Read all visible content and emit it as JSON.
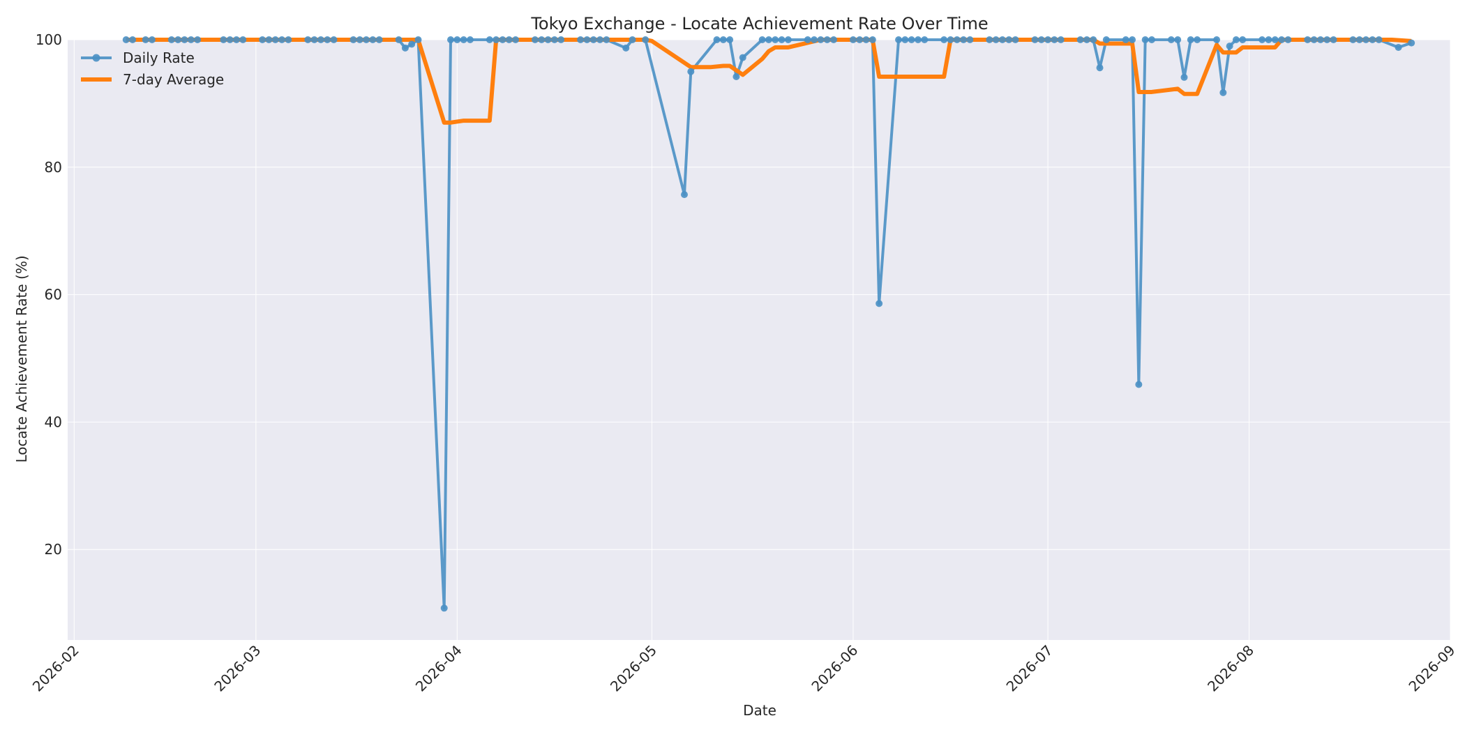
{
  "chart_data": {
    "type": "line",
    "title": "Tokyo Exchange - Locate Achievement Rate Over Time",
    "xlabel": "Date",
    "ylabel": "Locate Achievement Rate (%)",
    "x_tick_labels": [
      "2026-02",
      "2026-03",
      "2026-04",
      "2026-05",
      "2026-06",
      "2026-07",
      "2026-08",
      "2026-09"
    ],
    "x_tick_dates": [
      "2026-02-01",
      "2026-03-01",
      "2026-04-01",
      "2026-05-01",
      "2026-06-01",
      "2026-07-01",
      "2026-08-01",
      "2026-09-01"
    ],
    "xlim": [
      "2026-01-31",
      "2026-09-01"
    ],
    "y_ticks": [
      20,
      40,
      60,
      80,
      100
    ],
    "ylim": [
      5.8,
      100
    ],
    "grid": true,
    "legend_position": "top-left",
    "series": [
      {
        "name": "Daily Rate",
        "color": "#4a90c4",
        "marker": "circle",
        "points": [
          [
            "2026-02-09",
            100
          ],
          [
            "2026-02-10",
            100
          ],
          [
            "2026-02-12",
            100
          ],
          [
            "2026-02-13",
            100
          ],
          [
            "2026-02-16",
            100
          ],
          [
            "2026-02-17",
            100
          ],
          [
            "2026-02-18",
            100
          ],
          [
            "2026-02-19",
            100
          ],
          [
            "2026-02-20",
            100
          ],
          [
            "2026-02-24",
            100
          ],
          [
            "2026-02-25",
            100
          ],
          [
            "2026-02-26",
            100
          ],
          [
            "2026-02-27",
            100
          ],
          [
            "2026-03-02",
            100
          ],
          [
            "2026-03-03",
            100
          ],
          [
            "2026-03-04",
            100
          ],
          [
            "2026-03-05",
            100
          ],
          [
            "2026-03-06",
            100
          ],
          [
            "2026-03-09",
            100
          ],
          [
            "2026-03-10",
            100
          ],
          [
            "2026-03-11",
            100
          ],
          [
            "2026-03-12",
            100
          ],
          [
            "2026-03-13",
            100
          ],
          [
            "2026-03-16",
            100
          ],
          [
            "2026-03-17",
            100
          ],
          [
            "2026-03-18",
            100
          ],
          [
            "2026-03-19",
            100
          ],
          [
            "2026-03-20",
            100
          ],
          [
            "2026-03-23",
            100
          ],
          [
            "2026-03-24",
            98.7
          ],
          [
            "2026-03-25",
            99.3
          ],
          [
            "2026-03-26",
            100
          ],
          [
            "2026-03-30",
            10.8
          ],
          [
            "2026-03-31",
            100
          ],
          [
            "2026-04-01",
            100
          ],
          [
            "2026-04-02",
            100
          ],
          [
            "2026-04-03",
            100
          ],
          [
            "2026-04-06",
            100
          ],
          [
            "2026-04-07",
            100
          ],
          [
            "2026-04-08",
            100
          ],
          [
            "2026-04-09",
            100
          ],
          [
            "2026-04-10",
            100
          ],
          [
            "2026-04-13",
            100
          ],
          [
            "2026-04-14",
            100
          ],
          [
            "2026-04-15",
            100
          ],
          [
            "2026-04-16",
            100
          ],
          [
            "2026-04-17",
            100
          ],
          [
            "2026-04-20",
            100
          ],
          [
            "2026-04-21",
            100
          ],
          [
            "2026-04-22",
            100
          ],
          [
            "2026-04-23",
            100
          ],
          [
            "2026-04-24",
            100
          ],
          [
            "2026-04-27",
            98.7
          ],
          [
            "2026-04-28",
            100
          ],
          [
            "2026-04-30",
            100
          ],
          [
            "2026-05-06",
            75.7
          ],
          [
            "2026-05-07",
            95.0
          ],
          [
            "2026-05-11",
            100
          ],
          [
            "2026-05-12",
            100
          ],
          [
            "2026-05-13",
            100
          ],
          [
            "2026-05-14",
            94.2
          ],
          [
            "2026-05-15",
            97.2
          ],
          [
            "2026-05-18",
            100
          ],
          [
            "2026-05-19",
            100
          ],
          [
            "2026-05-20",
            100
          ],
          [
            "2026-05-21",
            100
          ],
          [
            "2026-05-22",
            100
          ],
          [
            "2026-05-25",
            100
          ],
          [
            "2026-05-26",
            100
          ],
          [
            "2026-05-27",
            100
          ],
          [
            "2026-05-28",
            100
          ],
          [
            "2026-05-29",
            100
          ],
          [
            "2026-06-01",
            100
          ],
          [
            "2026-06-02",
            100
          ],
          [
            "2026-06-03",
            100
          ],
          [
            "2026-06-04",
            100
          ],
          [
            "2026-06-05",
            58.6
          ],
          [
            "2026-06-08",
            100
          ],
          [
            "2026-06-09",
            100
          ],
          [
            "2026-06-10",
            100
          ],
          [
            "2026-06-11",
            100
          ],
          [
            "2026-06-12",
            100
          ],
          [
            "2026-06-15",
            100
          ],
          [
            "2026-06-16",
            100
          ],
          [
            "2026-06-17",
            100
          ],
          [
            "2026-06-18",
            100
          ],
          [
            "2026-06-19",
            100
          ],
          [
            "2026-06-22",
            100
          ],
          [
            "2026-06-23",
            100
          ],
          [
            "2026-06-24",
            100
          ],
          [
            "2026-06-25",
            100
          ],
          [
            "2026-06-26",
            100
          ],
          [
            "2026-06-29",
            100
          ],
          [
            "2026-06-30",
            100
          ],
          [
            "2026-07-01",
            100
          ],
          [
            "2026-07-02",
            100
          ],
          [
            "2026-07-03",
            100
          ],
          [
            "2026-07-06",
            100
          ],
          [
            "2026-07-07",
            100
          ],
          [
            "2026-07-08",
            100
          ],
          [
            "2026-07-09",
            95.6
          ],
          [
            "2026-07-10",
            100
          ],
          [
            "2026-07-13",
            100
          ],
          [
            "2026-07-14",
            100
          ],
          [
            "2026-07-15",
            45.9
          ],
          [
            "2026-07-16",
            100
          ],
          [
            "2026-07-17",
            100
          ],
          [
            "2026-07-20",
            100
          ],
          [
            "2026-07-21",
            100
          ],
          [
            "2026-07-22",
            94.1
          ],
          [
            "2026-07-23",
            100
          ],
          [
            "2026-07-24",
            100
          ],
          [
            "2026-07-27",
            100
          ],
          [
            "2026-07-28",
            91.7
          ],
          [
            "2026-07-29",
            99.0
          ],
          [
            "2026-07-30",
            100
          ],
          [
            "2026-07-31",
            100
          ],
          [
            "2026-08-03",
            100
          ],
          [
            "2026-08-04",
            100
          ],
          [
            "2026-08-05",
            100
          ],
          [
            "2026-08-06",
            100
          ],
          [
            "2026-08-07",
            100
          ],
          [
            "2026-08-10",
            100
          ],
          [
            "2026-08-11",
            100
          ],
          [
            "2026-08-12",
            100
          ],
          [
            "2026-08-13",
            100
          ],
          [
            "2026-08-14",
            100
          ],
          [
            "2026-08-17",
            100
          ],
          [
            "2026-08-18",
            100
          ],
          [
            "2026-08-19",
            100
          ],
          [
            "2026-08-20",
            100
          ],
          [
            "2026-08-21",
            100
          ],
          [
            "2026-08-24",
            98.8
          ],
          [
            "2026-08-26",
            99.5
          ]
        ]
      },
      {
        "name": "7-day Average",
        "color": "#ff7f0e",
        "marker": "none",
        "points": [
          [
            "2026-02-09",
            100
          ],
          [
            "2026-03-26",
            100
          ],
          [
            "2026-03-30",
            87.0
          ],
          [
            "2026-03-31",
            87.0
          ],
          [
            "2026-04-02",
            87.3
          ],
          [
            "2026-04-06",
            87.3
          ],
          [
            "2026-04-07",
            100
          ],
          [
            "2026-04-30",
            100
          ],
          [
            "2026-05-01",
            99.8
          ],
          [
            "2026-05-07",
            95.7
          ],
          [
            "2026-05-10",
            95.7
          ],
          [
            "2026-05-12",
            95.9
          ],
          [
            "2026-05-13",
            95.9
          ],
          [
            "2026-05-15",
            94.5
          ],
          [
            "2026-05-18",
            97.0
          ],
          [
            "2026-05-19",
            98.2
          ],
          [
            "2026-05-20",
            98.8
          ],
          [
            "2026-05-22",
            98.8
          ],
          [
            "2026-05-27",
            100
          ],
          [
            "2026-06-04",
            100
          ],
          [
            "2026-06-05",
            94.2
          ],
          [
            "2026-06-15",
            94.2
          ],
          [
            "2026-06-16",
            100
          ],
          [
            "2026-07-08",
            100
          ],
          [
            "2026-07-09",
            99.4
          ],
          [
            "2026-07-14",
            99.4
          ],
          [
            "2026-07-15",
            91.8
          ],
          [
            "2026-07-17",
            91.8
          ],
          [
            "2026-07-21",
            92.3
          ],
          [
            "2026-07-22",
            91.5
          ],
          [
            "2026-07-24",
            91.5
          ],
          [
            "2026-07-27",
            99.2
          ],
          [
            "2026-07-28",
            98.0
          ],
          [
            "2026-07-30",
            98.0
          ],
          [
            "2026-07-31",
            98.8
          ],
          [
            "2026-08-05",
            98.8
          ],
          [
            "2026-08-06",
            100
          ],
          [
            "2026-08-23",
            100
          ],
          [
            "2026-08-26",
            99.8
          ]
        ]
      }
    ]
  }
}
